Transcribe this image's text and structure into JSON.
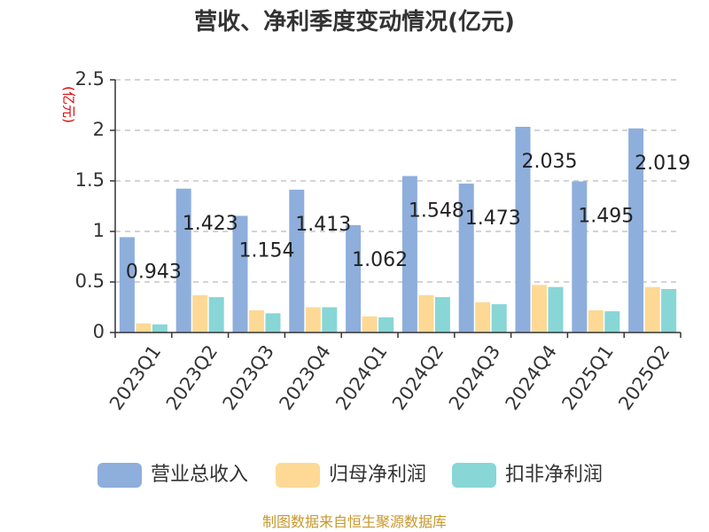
{
  "chart_data": {
    "type": "bar",
    "title": "营收、净利季度变动情况(亿元)",
    "ylabel": "(亿元)",
    "xlabel": "",
    "ylim": [
      0,
      2.5
    ],
    "yticks": [
      "0",
      "0.5",
      "1",
      "1.5",
      "2",
      "2.5"
    ],
    "grid": true,
    "legend_position": "bottom",
    "categories": [
      "2023Q1",
      "2023Q2",
      "2023Q3",
      "2023Q4",
      "2024Q1",
      "2024Q2",
      "2024Q3",
      "2024Q4",
      "2025Q1",
      "2025Q2"
    ],
    "series": [
      {
        "name": "营业总收入",
        "color": "#8eaedc",
        "values": [
          0.943,
          1.423,
          1.154,
          1.413,
          1.062,
          1.548,
          1.473,
          2.035,
          1.495,
          2.019
        ],
        "labels": [
          "0.943",
          "1.423",
          "1.154",
          "1.413",
          "1.062",
          "1.548",
          "1.473",
          "2.035",
          "1.495",
          "2.019"
        ]
      },
      {
        "name": "归母净利润",
        "color": "#fdd995",
        "values": [
          0.09,
          0.37,
          0.22,
          0.25,
          0.16,
          0.37,
          0.3,
          0.47,
          0.22,
          0.45
        ]
      },
      {
        "name": "扣非净利润",
        "color": "#88d6d6",
        "values": [
          0.08,
          0.35,
          0.19,
          0.25,
          0.15,
          0.35,
          0.28,
          0.45,
          0.21,
          0.43
        ]
      }
    ]
  },
  "source": "制图数据来自恒生聚源数据库",
  "colors": {
    "title": "#333333",
    "unit": "#dd0000",
    "source": "#c8982d",
    "grid": "#bbbbbb",
    "axis": "#333333"
  }
}
